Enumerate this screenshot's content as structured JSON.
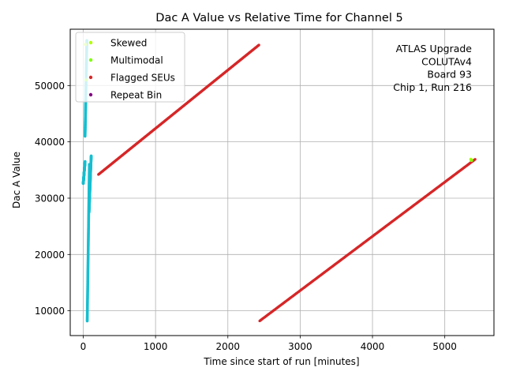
{
  "chart_data": {
    "type": "scatter",
    "title": "Dac A Value vs Relative Time for Channel 5",
    "xlabel": "Time since start of run [minutes]",
    "ylabel": "Dac A Value",
    "xlim": [
      -180,
      5680
    ],
    "ylim": [
      5600,
      60000
    ],
    "xticks": [
      0,
      1000,
      2000,
      3000,
      4000,
      5000
    ],
    "yticks": [
      10000,
      20000,
      30000,
      40000,
      50000
    ],
    "grid": true,
    "legend_position": "top-left",
    "annotation": [
      "ATLAS Upgrade",
      "COLUTAv4",
      "Board 93",
      "Chip 1, Run 216"
    ],
    "series": [
      {
        "name": "Skewed",
        "color": "#b2ff00",
        "points": [
          [
            30,
            57300
          ],
          [
            5360,
            36900
          ]
        ]
      },
      {
        "name": "Multimodal",
        "color": "#7fff00",
        "points": [
          [
            40,
            51000
          ],
          [
            5370,
            36700
          ]
        ]
      },
      {
        "name": "Flagged SEUs",
        "color": "#d62728",
        "segments": [
          {
            "x": [
              210,
              2430
            ],
            "y": [
              34200,
              57200
            ]
          },
          {
            "x": [
              2440,
              5420
            ],
            "y": [
              8200,
              36900
            ]
          }
        ]
      },
      {
        "name": "Repeat Bin",
        "color": "#800080",
        "points": []
      }
    ],
    "cyan_band": {
      "color": "#17becf",
      "segments": [
        {
          "x": [
            0,
            25
          ],
          "y": [
            32600,
            36500
          ]
        },
        {
          "x": [
            25,
            50
          ],
          "y": [
            41000,
            58000
          ]
        },
        {
          "x": [
            55,
            85
          ],
          "y": [
            8200,
            36000
          ]
        },
        {
          "x": [
            80,
            110
          ],
          "y": [
            27500,
            37500
          ]
        }
      ]
    }
  }
}
